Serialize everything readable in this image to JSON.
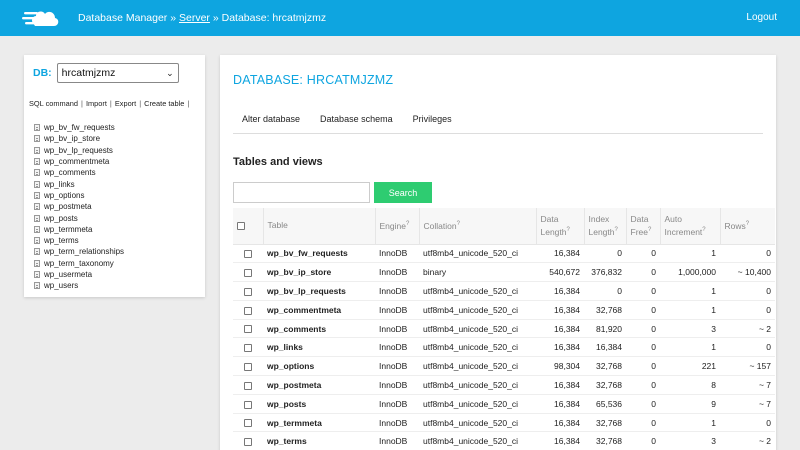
{
  "header": {
    "breadcrumb_prefix": "Database Manager »",
    "breadcrumb_server": "Server",
    "breadcrumb_suffix": "» Database: hrcatmjzmz",
    "logout": "Logout",
    "brand_color": "#0ea5e0"
  },
  "sidebar": {
    "db_label": "DB:",
    "db_selected": "hrcatmjzmz",
    "links": [
      "SQL command",
      "Import",
      "Export",
      "Create table"
    ],
    "tables": [
      "wp_bv_fw_requests",
      "wp_bv_ip_store",
      "wp_bv_lp_requests",
      "wp_commentmeta",
      "wp_comments",
      "wp_links",
      "wp_options",
      "wp_postmeta",
      "wp_posts",
      "wp_termmeta",
      "wp_terms",
      "wp_term_relationships",
      "wp_term_taxonomy",
      "wp_usermeta",
      "wp_users"
    ]
  },
  "main": {
    "title": "DATABASE: HRCATMJZMZ",
    "tabs": [
      "Alter database",
      "Database schema",
      "Privileges"
    ],
    "section_title": "Tables and views",
    "search_value": "",
    "search_button": "Search",
    "button_color": "#2ecc71",
    "columns": {
      "table": "Table",
      "engine": "Engine",
      "collation": "Collation",
      "data_length_1": "Data",
      "data_length_2": "Length",
      "index_length_1": "Index",
      "index_length_2": "Length",
      "data_free_1": "Data",
      "data_free_2": "Free",
      "auto_inc_1": "Auto",
      "auto_inc_2": "Increment",
      "rows": "Rows",
      "help_mark": "?"
    },
    "rows": [
      {
        "name": "wp_bv_fw_requests",
        "engine": "InnoDB",
        "collation": "utf8mb4_unicode_520_ci",
        "data_length": "16,384",
        "index_length": "0",
        "data_free": "0",
        "auto_increment": "1",
        "rows": "0"
      },
      {
        "name": "wp_bv_ip_store",
        "engine": "InnoDB",
        "collation": "binary",
        "data_length": "540,672",
        "index_length": "376,832",
        "data_free": "0",
        "auto_increment": "1,000,000",
        "rows": "~ 10,400"
      },
      {
        "name": "wp_bv_lp_requests",
        "engine": "InnoDB",
        "collation": "utf8mb4_unicode_520_ci",
        "data_length": "16,384",
        "index_length": "0",
        "data_free": "0",
        "auto_increment": "1",
        "rows": "0"
      },
      {
        "name": "wp_commentmeta",
        "engine": "InnoDB",
        "collation": "utf8mb4_unicode_520_ci",
        "data_length": "16,384",
        "index_length": "32,768",
        "data_free": "0",
        "auto_increment": "1",
        "rows": "0"
      },
      {
        "name": "wp_comments",
        "engine": "InnoDB",
        "collation": "utf8mb4_unicode_520_ci",
        "data_length": "16,384",
        "index_length": "81,920",
        "data_free": "0",
        "auto_increment": "3",
        "rows": "~ 2"
      },
      {
        "name": "wp_links",
        "engine": "InnoDB",
        "collation": "utf8mb4_unicode_520_ci",
        "data_length": "16,384",
        "index_length": "16,384",
        "data_free": "0",
        "auto_increment": "1",
        "rows": "0"
      },
      {
        "name": "wp_options",
        "engine": "InnoDB",
        "collation": "utf8mb4_unicode_520_ci",
        "data_length": "98,304",
        "index_length": "32,768",
        "data_free": "0",
        "auto_increment": "221",
        "rows": "~ 157"
      },
      {
        "name": "wp_postmeta",
        "engine": "InnoDB",
        "collation": "utf8mb4_unicode_520_ci",
        "data_length": "16,384",
        "index_length": "32,768",
        "data_free": "0",
        "auto_increment": "8",
        "rows": "~ 7"
      },
      {
        "name": "wp_posts",
        "engine": "InnoDB",
        "collation": "utf8mb4_unicode_520_ci",
        "data_length": "16,384",
        "index_length": "65,536",
        "data_free": "0",
        "auto_increment": "9",
        "rows": "~ 7"
      },
      {
        "name": "wp_termmeta",
        "engine": "InnoDB",
        "collation": "utf8mb4_unicode_520_ci",
        "data_length": "16,384",
        "index_length": "32,768",
        "data_free": "0",
        "auto_increment": "1",
        "rows": "0"
      },
      {
        "name": "wp_terms",
        "engine": "InnoDB",
        "collation": "utf8mb4_unicode_520_ci",
        "data_length": "16,384",
        "index_length": "32,768",
        "data_free": "0",
        "auto_increment": "3",
        "rows": "~ 2"
      }
    ]
  }
}
